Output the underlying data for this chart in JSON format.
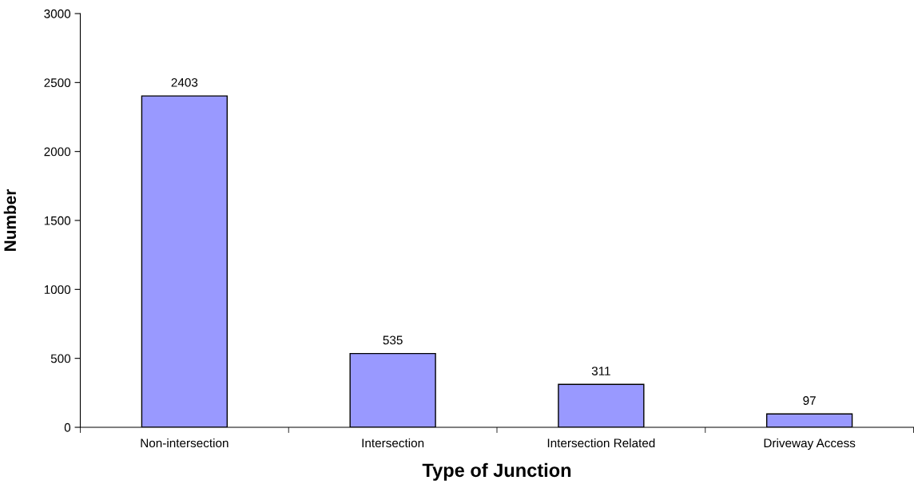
{
  "chart_data": {
    "type": "bar",
    "xlabel": "Type of Junction",
    "ylabel": "Number",
    "categories": [
      "Non-intersection",
      "Intersection",
      "Intersection Related",
      "Driveway Access"
    ],
    "values": [
      2403,
      535,
      311,
      97
    ],
    "color": "#9999ff",
    "ylim": [
      0,
      3000
    ],
    "yticks": [
      0,
      500,
      1000,
      1500,
      2000,
      2500,
      3000
    ],
    "grid": false,
    "data_labels": true
  }
}
